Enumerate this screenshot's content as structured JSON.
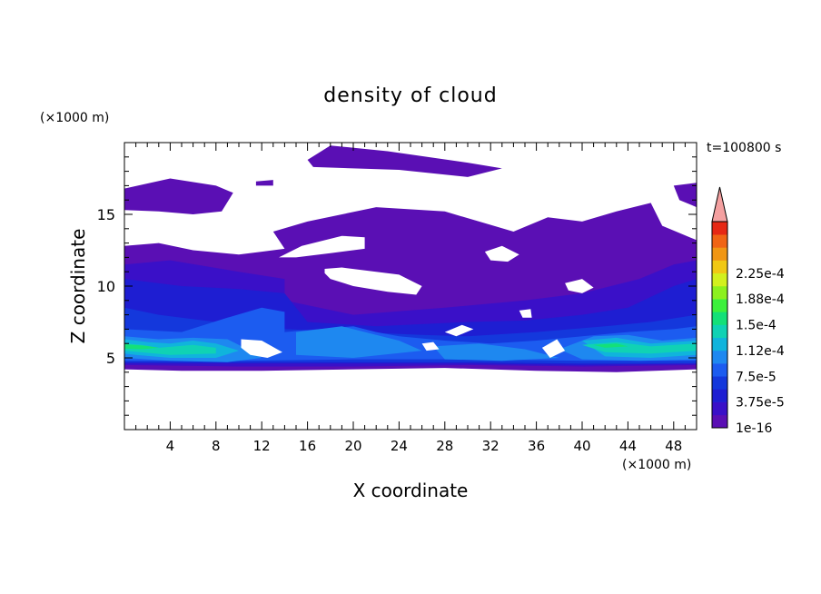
{
  "chart_data": {
    "type": "heatmap",
    "title": "density of cloud",
    "xlabel": "X coordinate",
    "ylabel": "Z coordinate",
    "x_unit": "(×1000 m)",
    "y_unit": "(×1000 m)",
    "time_label": "t=100800 s",
    "xlim": [
      0,
      50
    ],
    "ylim": [
      0,
      20
    ],
    "x_ticks": [
      "4",
      "8",
      "12",
      "16",
      "20",
      "24",
      "28",
      "32",
      "36",
      "40",
      "44",
      "48"
    ],
    "y_ticks": [
      "5",
      "10",
      "15"
    ],
    "colorbar": {
      "labels": [
        "2.25e-4",
        "1.88e-4",
        "1.5e-4",
        "1.12e-4",
        "7.5e-5",
        "3.75e-5",
        "1e-16"
      ],
      "levels_colors": [
        "#5a0fb4",
        "#3a10c8",
        "#1e1ed2",
        "#1438dc",
        "#1c5cf0",
        "#1e88f0",
        "#10b4dc",
        "#10d2b4",
        "#14e078",
        "#3cf03c",
        "#8cf01e",
        "#d2f01e",
        "#f0c814",
        "#f09614",
        "#f06414",
        "#e62814"
      ],
      "extend_color": "#f4a0a0"
    },
    "regions": [
      {
        "level": 1,
        "points": [
          [
            0.0,
            12.8
          ],
          [
            3,
            13
          ],
          [
            6,
            12.5
          ],
          [
            10,
            12.2
          ],
          [
            12,
            12.4
          ],
          [
            14,
            12.6
          ],
          [
            13,
            13.8
          ],
          [
            16,
            14.5
          ],
          [
            22,
            15.5
          ],
          [
            28,
            15.2
          ],
          [
            31,
            14.5
          ],
          [
            34,
            13.8
          ],
          [
            37,
            14.8
          ],
          [
            40,
            14.5
          ],
          [
            43,
            15.2
          ],
          [
            46,
            15.8
          ],
          [
            47,
            14.2
          ],
          [
            50,
            13.2
          ],
          [
            50,
            4.2
          ],
          [
            43,
            4.0
          ],
          [
            36,
            4.1
          ],
          [
            28,
            4.3
          ],
          [
            20,
            4.2
          ],
          [
            12,
            4.1
          ],
          [
            5,
            4.1
          ],
          [
            0,
            4.2
          ]
        ]
      },
      {
        "level": 1,
        "points": [
          [
            0,
            16.8
          ],
          [
            4,
            17.5
          ],
          [
            8,
            17.0
          ],
          [
            9.5,
            16.5
          ],
          [
            8.5,
            15.2
          ],
          [
            6,
            15.0
          ],
          [
            3,
            15.2
          ],
          [
            0,
            15.3
          ]
        ]
      },
      {
        "level": 1,
        "points": [
          [
            16,
            18.8
          ],
          [
            18,
            19.8
          ],
          [
            23,
            19.4
          ],
          [
            30,
            18.6
          ],
          [
            33,
            18.2
          ],
          [
            30,
            17.6
          ],
          [
            24,
            18.1
          ],
          [
            20,
            18.2
          ],
          [
            16.5,
            18.3
          ]
        ]
      },
      {
        "level": 1,
        "points": [
          [
            48,
            17.0
          ],
          [
            50,
            17.2
          ],
          [
            50,
            15.5
          ],
          [
            48.5,
            16.0
          ]
        ]
      },
      {
        "level": 1,
        "points": [
          [
            11.5,
            17.3
          ],
          [
            13,
            17.4
          ],
          [
            13,
            17.0
          ],
          [
            11.5,
            17.0
          ]
        ]
      },
      {
        "level": 2,
        "points": [
          [
            0,
            11.5
          ],
          [
            4,
            11.8
          ],
          [
            10,
            11.0
          ],
          [
            14,
            10.5
          ],
          [
            14,
            9.0
          ],
          [
            20,
            8.0
          ],
          [
            28,
            8.5
          ],
          [
            35,
            9.0
          ],
          [
            40,
            9.5
          ],
          [
            45,
            10.5
          ],
          [
            48,
            11.5
          ],
          [
            50,
            11.8
          ],
          [
            50,
            4.5
          ],
          [
            40,
            4.4
          ],
          [
            30,
            4.5
          ],
          [
            20,
            4.4
          ],
          [
            10,
            4.4
          ],
          [
            0,
            4.5
          ]
        ]
      },
      {
        "level": 3,
        "points": [
          [
            0,
            10.5
          ],
          [
            5,
            10.0
          ],
          [
            10,
            9.8
          ],
          [
            14,
            9.5
          ],
          [
            16,
            7.5
          ],
          [
            22,
            7.2
          ],
          [
            30,
            7.5
          ],
          [
            35,
            7.6
          ],
          [
            40,
            8.0
          ],
          [
            44,
            8.5
          ],
          [
            48,
            10.0
          ],
          [
            50,
            10.5
          ],
          [
            50,
            4.6
          ],
          [
            40,
            4.5
          ],
          [
            30,
            4.6
          ],
          [
            20,
            4.6
          ],
          [
            10,
            4.6
          ],
          [
            0,
            4.6
          ]
        ]
      },
      {
        "level": 4,
        "points": [
          [
            0,
            8.5
          ],
          [
            3,
            8.0
          ],
          [
            8,
            7.5
          ],
          [
            14,
            7.0
          ],
          [
            20,
            6.8
          ],
          [
            26,
            6.6
          ],
          [
            30,
            6.5
          ],
          [
            36,
            6.8
          ],
          [
            42,
            7.2
          ],
          [
            46,
            7.5
          ],
          [
            50,
            8.0
          ],
          [
            50,
            4.6
          ],
          [
            40,
            4.6
          ],
          [
            30,
            4.7
          ],
          [
            20,
            4.7
          ],
          [
            10,
            4.7
          ],
          [
            0,
            4.7
          ]
        ]
      },
      {
        "level": 5,
        "points": [
          [
            0,
            7.0
          ],
          [
            5,
            6.8
          ],
          [
            9,
            7.8
          ],
          [
            12,
            8.5
          ],
          [
            14,
            8.2
          ],
          [
            14,
            6.8
          ],
          [
            20,
            7.2
          ],
          [
            22,
            6.8
          ],
          [
            24,
            6.5
          ],
          [
            28,
            6.2
          ],
          [
            32,
            6.0
          ],
          [
            36,
            6.2
          ],
          [
            40,
            6.5
          ],
          [
            44,
            6.8
          ],
          [
            48,
            7.0
          ],
          [
            50,
            7.2
          ],
          [
            50,
            4.8
          ],
          [
            40,
            4.8
          ],
          [
            30,
            4.9
          ],
          [
            20,
            4.9
          ],
          [
            10,
            4.8
          ],
          [
            0,
            4.8
          ]
        ]
      },
      {
        "level": 6,
        "points": [
          [
            0,
            6.5
          ],
          [
            3,
            6.3
          ],
          [
            6,
            6.4
          ],
          [
            9,
            6.3
          ],
          [
            11,
            5.5
          ],
          [
            12,
            5.0
          ],
          [
            9,
            4.7
          ],
          [
            4,
            4.8
          ],
          [
            0,
            5.0
          ]
        ]
      },
      {
        "level": 6,
        "points": [
          [
            15,
            6.8
          ],
          [
            19,
            7.2
          ],
          [
            22,
            6.6
          ],
          [
            24,
            6.2
          ],
          [
            26,
            5.5
          ],
          [
            20,
            5.0
          ],
          [
            15,
            5.2
          ]
        ]
      },
      {
        "level": 6,
        "points": [
          [
            27,
            5.8
          ],
          [
            31,
            6.0
          ],
          [
            35,
            5.6
          ],
          [
            38,
            5.0
          ],
          [
            33,
            4.8
          ],
          [
            28,
            4.9
          ]
        ]
      },
      {
        "level": 6,
        "points": [
          [
            38,
            5.6
          ],
          [
            41,
            6.5
          ],
          [
            44,
            6.6
          ],
          [
            47,
            6.2
          ],
          [
            50,
            6.4
          ],
          [
            50,
            4.9
          ],
          [
            45,
            4.8
          ],
          [
            40,
            4.9
          ]
        ]
      },
      {
        "level": 7,
        "points": [
          [
            0,
            6.3
          ],
          [
            2,
            6.1
          ],
          [
            4,
            6.0
          ],
          [
            6,
            6.2
          ],
          [
            8,
            6.0
          ],
          [
            10,
            5.5
          ],
          [
            8,
            5.0
          ],
          [
            4,
            5.0
          ],
          [
            1,
            5.2
          ],
          [
            0,
            5.3
          ]
        ]
      },
      {
        "level": 7,
        "points": [
          [
            40,
            6.2
          ],
          [
            43,
            6.4
          ],
          [
            46,
            6.0
          ],
          [
            50,
            6.2
          ],
          [
            50,
            5.2
          ],
          [
            46,
            5.0
          ],
          [
            42,
            5.1
          ]
        ]
      },
      {
        "level": 8,
        "points": [
          [
            0,
            6.0
          ],
          [
            1.5,
            5.9
          ],
          [
            3,
            5.7
          ],
          [
            6,
            5.9
          ],
          [
            8,
            5.7
          ],
          [
            8,
            5.3
          ],
          [
            4,
            5.2
          ],
          [
            0,
            5.5
          ]
        ]
      },
      {
        "level": 8,
        "points": [
          [
            40,
            5.9
          ],
          [
            43,
            6.1
          ],
          [
            46,
            5.8
          ],
          [
            50,
            6.0
          ],
          [
            50,
            5.5
          ],
          [
            46,
            5.3
          ],
          [
            42,
            5.4
          ]
        ]
      },
      {
        "level": 9,
        "points": [
          [
            0,
            5.95
          ],
          [
            1.8,
            5.85
          ],
          [
            3,
            5.7
          ],
          [
            1.5,
            5.6
          ],
          [
            0,
            5.65
          ]
        ]
      },
      {
        "level": 9,
        "points": [
          [
            41,
            5.9
          ],
          [
            43,
            6.0
          ],
          [
            44,
            5.8
          ],
          [
            42,
            5.7
          ]
        ]
      }
    ],
    "holes": [
      {
        "points": [
          [
            13.5,
            12.0
          ],
          [
            15.5,
            12.8
          ],
          [
            19,
            13.5
          ],
          [
            21,
            13.4
          ],
          [
            21,
            12.6
          ],
          [
            18,
            12.3
          ],
          [
            15,
            12.0
          ]
        ]
      },
      {
        "points": [
          [
            17.5,
            11.2
          ],
          [
            19,
            11.3
          ],
          [
            22,
            11.0
          ],
          [
            24,
            10.8
          ],
          [
            25,
            10.4
          ],
          [
            26,
            10.0
          ],
          [
            25.5,
            9.4
          ],
          [
            23,
            9.6
          ],
          [
            20,
            10.0
          ],
          [
            18,
            10.5
          ],
          [
            17.5,
            10.9
          ]
        ]
      },
      {
        "points": [
          [
            31.5,
            12.4
          ],
          [
            33,
            12.8
          ],
          [
            34.5,
            12.2
          ],
          [
            33.5,
            11.7
          ],
          [
            32,
            11.8
          ]
        ]
      },
      {
        "points": [
          [
            38.5,
            10.2
          ],
          [
            40,
            10.5
          ],
          [
            41,
            9.9
          ],
          [
            40,
            9.5
          ],
          [
            38.8,
            9.7
          ]
        ]
      },
      {
        "points": [
          [
            34.5,
            8.3
          ],
          [
            35.5,
            8.4
          ],
          [
            35.6,
            7.8
          ],
          [
            34.8,
            7.8
          ]
        ]
      },
      {
        "points": [
          [
            28,
            6.8
          ],
          [
            29.5,
            7.3
          ],
          [
            30.5,
            7.0
          ],
          [
            29,
            6.5
          ]
        ]
      },
      {
        "points": [
          [
            10.2,
            6.3
          ],
          [
            12.0,
            6.2
          ],
          [
            13.8,
            5.4
          ],
          [
            12.5,
            5.0
          ],
          [
            11.0,
            5.2
          ],
          [
            10.2,
            5.7
          ]
        ]
      },
      {
        "points": [
          [
            26,
            6.0
          ],
          [
            27,
            6.1
          ],
          [
            27.5,
            5.6
          ],
          [
            26.4,
            5.5
          ]
        ]
      },
      {
        "points": [
          [
            36.5,
            5.7
          ],
          [
            37.8,
            6.3
          ],
          [
            38.5,
            5.5
          ],
          [
            37.2,
            5.0
          ]
        ]
      }
    ]
  }
}
